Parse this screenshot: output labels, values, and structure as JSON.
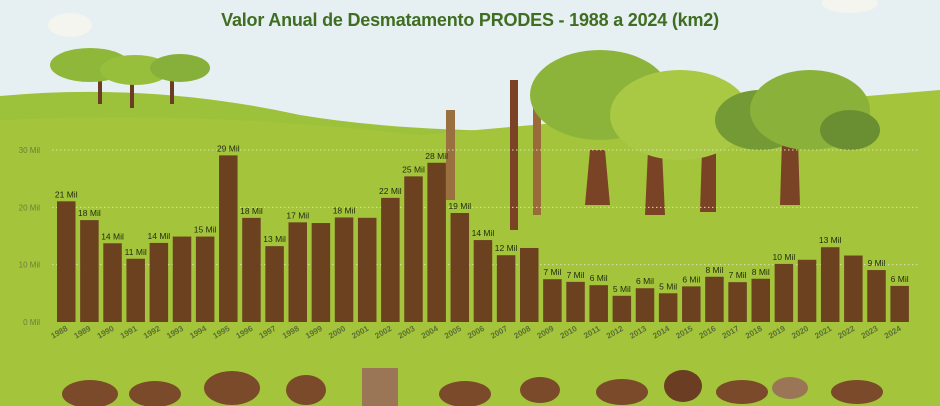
{
  "title": "Valor Anual de Desmatamento PRODES -  1988 a  2024 (km2)",
  "chart_data": {
    "type": "bar",
    "title": "Valor Anual de Desmatamento PRODES -  1988 a  2024 (km2)",
    "xlabel": "",
    "ylabel": "",
    "ylim": [
      0,
      30
    ],
    "yunit": "Mil",
    "yticks": [
      "0 Mil",
      "10 Mil",
      "20 Mil",
      "30 Mil"
    ],
    "grid": true,
    "bar_color": "#6b4120",
    "categories": [
      "1988",
      "1989",
      "1990",
      "1991",
      "1992",
      "1993",
      "1994",
      "1995",
      "1996",
      "1997",
      "1998",
      "1999",
      "2000",
      "2001",
      "2002",
      "2003",
      "2004",
      "2005",
      "2006",
      "2007",
      "2008",
      "2009",
      "2010",
      "2011",
      "2012",
      "2013",
      "2014",
      "2015",
      "2016",
      "2017",
      "2018",
      "2019",
      "2020",
      "2021",
      "2022",
      "2023",
      "2024"
    ],
    "values": [
      21.05,
      17.77,
      13.73,
      11.03,
      13.79,
      14.9,
      14.9,
      29.06,
      18.16,
      13.23,
      17.38,
      17.26,
      18.23,
      18.17,
      21.65,
      25.4,
      27.77,
      19.01,
      14.29,
      11.65,
      12.91,
      7.46,
      7.0,
      6.42,
      4.57,
      5.89,
      5.01,
      6.21,
      7.89,
      6.95,
      7.54,
      10.13,
      10.85,
      13.04,
      11.59,
      9.06,
      6.29
    ],
    "labels": [
      "21 Mil",
      "18 Mil",
      "14 Mil",
      "11 Mil",
      "14 Mil",
      null,
      "15 Mil",
      "29 Mil",
      "18 Mil",
      "13 Mil",
      "17 Mil",
      null,
      "18 Mil",
      null,
      "22 Mil",
      "25 Mil",
      "28 Mil",
      "19 Mil",
      "14 Mil",
      "12 Mil",
      null,
      "7 Mil",
      "7 Mil",
      "6 Mil",
      "5 Mil",
      "6 Mil",
      "5 Mil",
      "6 Mil",
      "8 Mil",
      "7 Mil",
      "8 Mil",
      "10 Mil",
      null,
      "13 Mil",
      null,
      "9 Mil",
      "6 Mil"
    ]
  }
}
